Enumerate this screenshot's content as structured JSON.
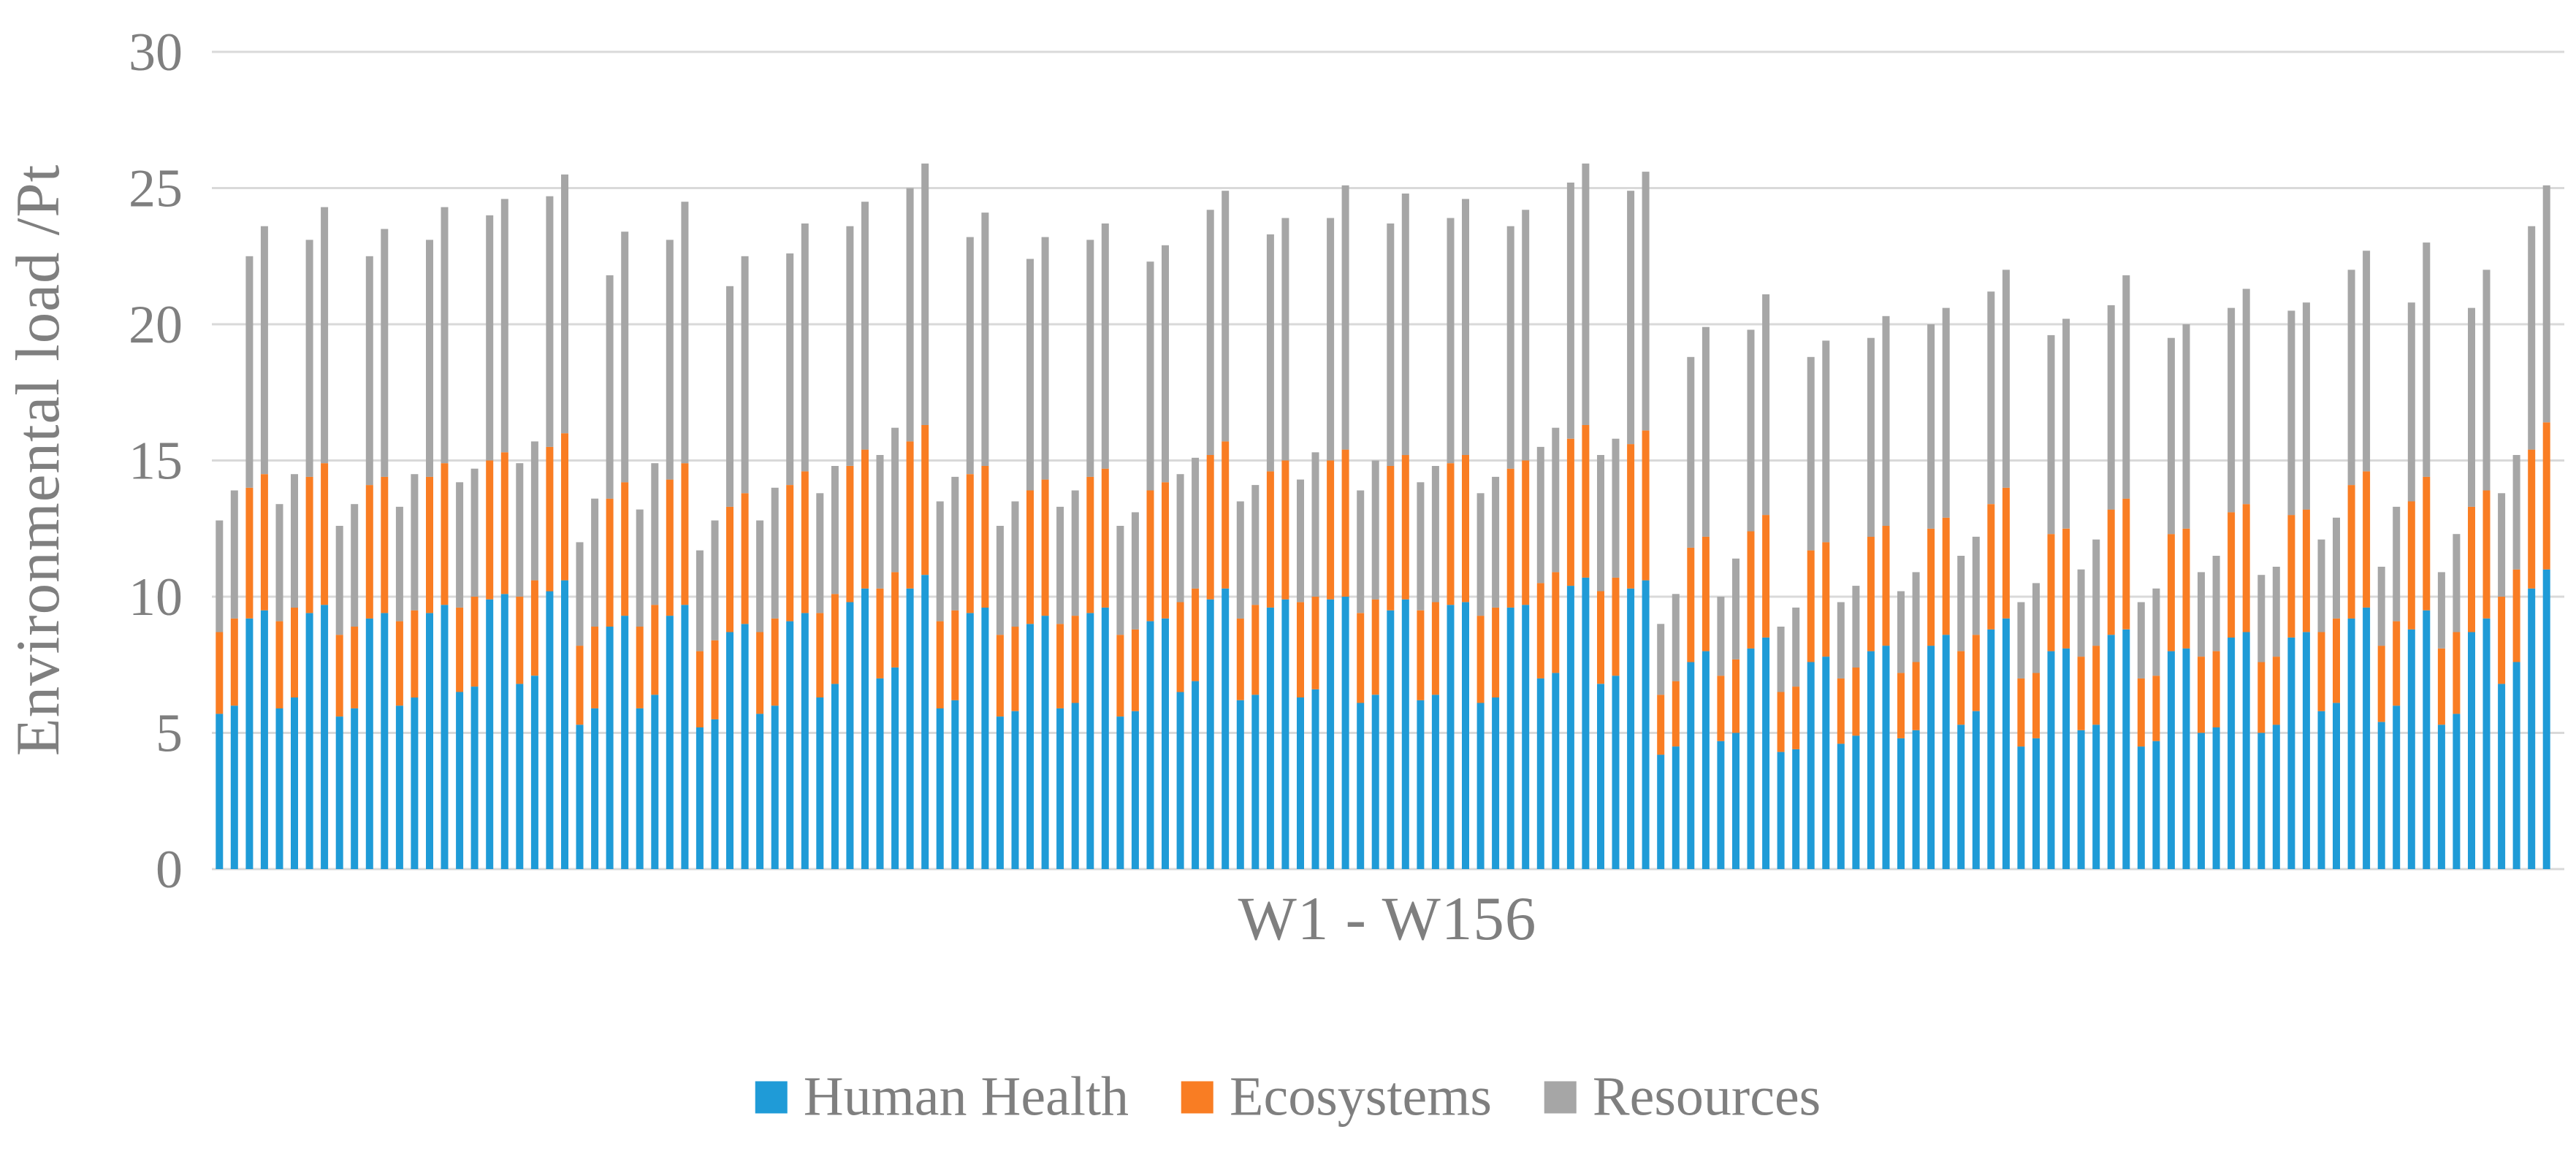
{
  "figure": {
    "kind": "stacked-bar-chart-figure",
    "background": "#FFFFFF"
  },
  "colors": {
    "human_health": "#1F9BD7",
    "ecosystems": "#F97D23",
    "resources": "#A6A6A6",
    "gridline": "#D9D9D9",
    "axis_line": "#D9D9D9",
    "axis_text": "#7F7F7F"
  },
  "chart_data": {
    "type": "bar",
    "stacked": true,
    "title": "",
    "xlabel": "W1 - W156",
    "ylabel": "Environmental load /Pt",
    "ylim": [
      0,
      30
    ],
    "yticks": [
      0,
      5,
      10,
      15,
      20,
      25,
      30
    ],
    "grid": true,
    "x_tick_labels_hidden": true,
    "n_bars": 156,
    "x_range_label": "W1 - W156",
    "legend_position": "bottom-center",
    "series": [
      {
        "name": "Human Health",
        "color": "#1F9BD7",
        "values": [
          5.7,
          6.0,
          9.2,
          9.5,
          5.9,
          6.3,
          9.4,
          9.7,
          5.6,
          5.9,
          9.2,
          9.4,
          6.0,
          6.3,
          9.4,
          9.7,
          6.5,
          6.7,
          9.9,
          10.1,
          6.8,
          7.1,
          10.2,
          10.6,
          5.3,
          5.9,
          8.9,
          9.3,
          5.9,
          6.4,
          9.3,
          9.7,
          5.2,
          5.5,
          8.7,
          9.0,
          5.7,
          6.0,
          9.1,
          9.4,
          6.3,
          6.8,
          9.8,
          10.3,
          7.0,
          7.4,
          10.3,
          10.8,
          5.9,
          6.2,
          9.4,
          9.6,
          5.6,
          5.8,
          9.0,
          9.3,
          5.9,
          6.1,
          9.4,
          9.6,
          5.6,
          5.8,
          9.1,
          9.2,
          6.5,
          6.9,
          9.9,
          10.3,
          6.2,
          6.4,
          9.6,
          9.9,
          6.3,
          6.6,
          9.9,
          10.0,
          6.1,
          6.4,
          9.5,
          9.9,
          6.2,
          6.4,
          9.7,
          9.8,
          6.1,
          6.3,
          9.6,
          9.7,
          7.0,
          7.2,
          10.4,
          10.7,
          6.8,
          7.1,
          10.3,
          10.6,
          4.2,
          4.5,
          7.6,
          8.0,
          4.7,
          5.0,
          8.1,
          8.5,
          4.3,
          4.4,
          7.6,
          7.8,
          4.6,
          4.9,
          8.0,
          8.2,
          4.8,
          5.1,
          8.2,
          8.6,
          5.3,
          5.8,
          8.8,
          9.2,
          4.5,
          4.8,
          8.0,
          8.1,
          5.1,
          5.3,
          8.6,
          8.8,
          4.5,
          4.7,
          8.0,
          8.1,
          5.0,
          5.2,
          8.5,
          8.7,
          5.0,
          5.3,
          8.5,
          8.7,
          5.8,
          6.1,
          9.2,
          9.6,
          5.4,
          6.0,
          8.8,
          9.5,
          5.3,
          5.7,
          8.7,
          9.2,
          6.8,
          7.6,
          10.3,
          11.0
        ]
      },
      {
        "name": "Ecosystems",
        "color": "#F97D23",
        "values": [
          3.0,
          3.2,
          4.8,
          5.0,
          3.2,
          3.3,
          5.0,
          5.2,
          3.0,
          3.0,
          4.9,
          5.0,
          3.1,
          3.2,
          5.0,
          5.2,
          3.1,
          3.3,
          5.1,
          5.2,
          3.2,
          3.5,
          5.3,
          5.4,
          2.9,
          3.0,
          4.7,
          4.9,
          3.0,
          3.3,
          5.0,
          5.2,
          2.8,
          2.9,
          4.6,
          4.8,
          3.0,
          3.2,
          5.0,
          5.2,
          3.1,
          3.3,
          5.0,
          5.1,
          3.3,
          3.5,
          5.4,
          5.5,
          3.2,
          3.3,
          5.1,
          5.2,
          3.0,
          3.1,
          4.9,
          5.0,
          3.1,
          3.2,
          5.0,
          5.1,
          3.0,
          3.0,
          4.8,
          5.0,
          3.3,
          3.4,
          5.3,
          5.4,
          3.0,
          3.3,
          5.0,
          5.1,
          3.5,
          3.4,
          5.1,
          5.4,
          3.3,
          3.5,
          5.3,
          5.3,
          3.3,
          3.4,
          5.2,
          5.4,
          3.2,
          3.3,
          5.1,
          5.3,
          3.5,
          3.7,
          5.4,
          5.6,
          3.4,
          3.6,
          5.3,
          5.5,
          2.2,
          2.4,
          4.2,
          4.2,
          2.4,
          2.7,
          4.3,
          4.5,
          2.2,
          2.3,
          4.1,
          4.2,
          2.4,
          2.5,
          4.2,
          4.4,
          2.4,
          2.5,
          4.3,
          4.3,
          2.7,
          2.8,
          4.6,
          4.8,
          2.5,
          2.4,
          4.3,
          4.4,
          2.7,
          2.9,
          4.6,
          4.8,
          2.5,
          2.4,
          4.3,
          4.4,
          2.8,
          2.8,
          4.6,
          4.7,
          2.6,
          2.5,
          4.5,
          4.5,
          2.9,
          3.1,
          4.9,
          5.0,
          2.8,
          3.1,
          4.7,
          4.9,
          2.8,
          3.0,
          4.6,
          4.7,
          3.2,
          3.4,
          5.1,
          5.4
        ]
      },
      {
        "name": "Resources",
        "color": "#A6A6A6",
        "values": [
          4.1,
          4.7,
          8.5,
          9.1,
          4.3,
          4.9,
          8.7,
          9.4,
          4.0,
          4.5,
          8.4,
          9.1,
          4.2,
          5.0,
          8.7,
          9.4,
          4.6,
          4.7,
          9.0,
          9.3,
          4.9,
          5.1,
          9.2,
          9.5,
          3.8,
          4.7,
          8.2,
          9.2,
          4.3,
          5.2,
          8.8,
          9.6,
          3.7,
          4.4,
          8.1,
          8.7,
          4.1,
          4.8,
          8.5,
          9.1,
          4.4,
          4.7,
          8.8,
          9.1,
          4.9,
          5.3,
          9.3,
          9.6,
          4.4,
          4.9,
          8.7,
          9.3,
          4.0,
          4.6,
          8.5,
          8.9,
          4.3,
          4.6,
          8.7,
          9.0,
          4.0,
          4.3,
          8.4,
          8.7,
          4.7,
          4.8,
          9.0,
          9.2,
          4.3,
          4.4,
          8.7,
          8.9,
          4.5,
          5.3,
          8.9,
          9.7,
          4.5,
          5.1,
          8.9,
          9.6,
          4.7,
          5.0,
          9.0,
          9.4,
          4.5,
          4.8,
          8.9,
          9.2,
          5.0,
          5.3,
          9.4,
          9.6,
          5.0,
          5.1,
          9.3,
          9.5,
          2.6,
          3.2,
          7.0,
          7.7,
          2.9,
          3.7,
          7.4,
          8.1,
          2.4,
          2.9,
          7.1,
          7.4,
          2.8,
          3.0,
          7.3,
          7.7,
          3.0,
          3.3,
          7.5,
          7.7,
          3.5,
          3.6,
          7.8,
          8.0,
          2.8,
          3.3,
          7.3,
          7.7,
          3.2,
          3.9,
          7.5,
          8.2,
          2.8,
          3.2,
          7.2,
          7.5,
          3.1,
          3.5,
          7.5,
          7.9,
          3.2,
          3.3,
          7.5,
          7.6,
          3.4,
          3.7,
          7.9,
          8.1,
          2.9,
          4.2,
          7.3,
          8.6,
          2.8,
          3.6,
          7.3,
          8.1,
          3.8,
          4.2,
          8.2,
          8.7
        ]
      }
    ]
  },
  "legend": {
    "items": [
      {
        "label": "Human Health"
      },
      {
        "label": "Ecosystems"
      },
      {
        "label": "Resources"
      }
    ]
  }
}
